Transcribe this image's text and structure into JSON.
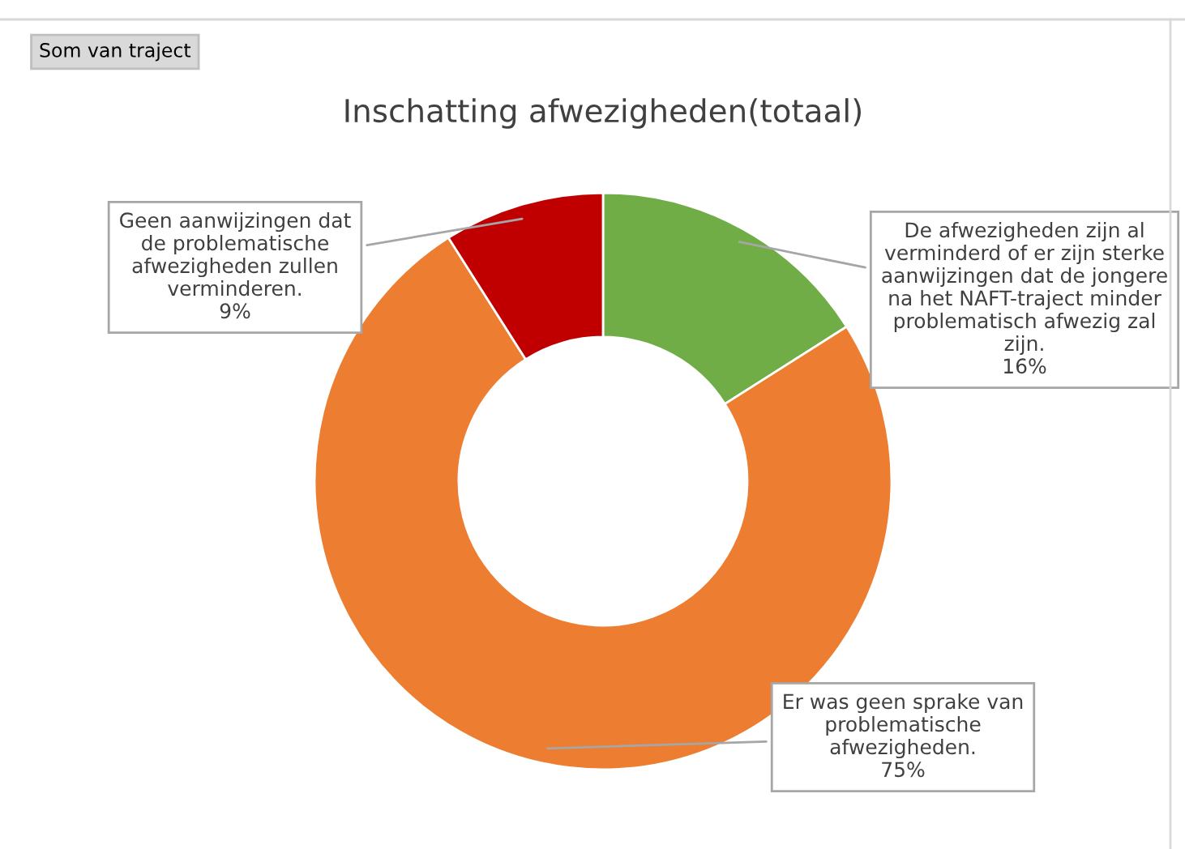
{
  "chart_data": {
    "type": "donut",
    "title": "Inschatting afwezigheden(totaal)",
    "categories": [
      "De afwezigheden zijn al\nverminderd of er zijn sterke\naanwijzingen dat de jongere\nna het NAFT-traject minder\nproblematisch afwezig zal\nzijn.",
      "Er was geen sprake van\nproblematische\nafwezigheden.",
      "Geen aanwijzingen dat\nde problematische\nafwezigheden zullen\nverminderen."
    ],
    "values": [
      16,
      75,
      9
    ],
    "colors": [
      "#70ad47",
      "#ed7d31",
      "#c00000"
    ],
    "value_labels": [
      "16%",
      "75%",
      "9%"
    ],
    "legend": false,
    "annotations": [
      "Som van traject"
    ]
  }
}
